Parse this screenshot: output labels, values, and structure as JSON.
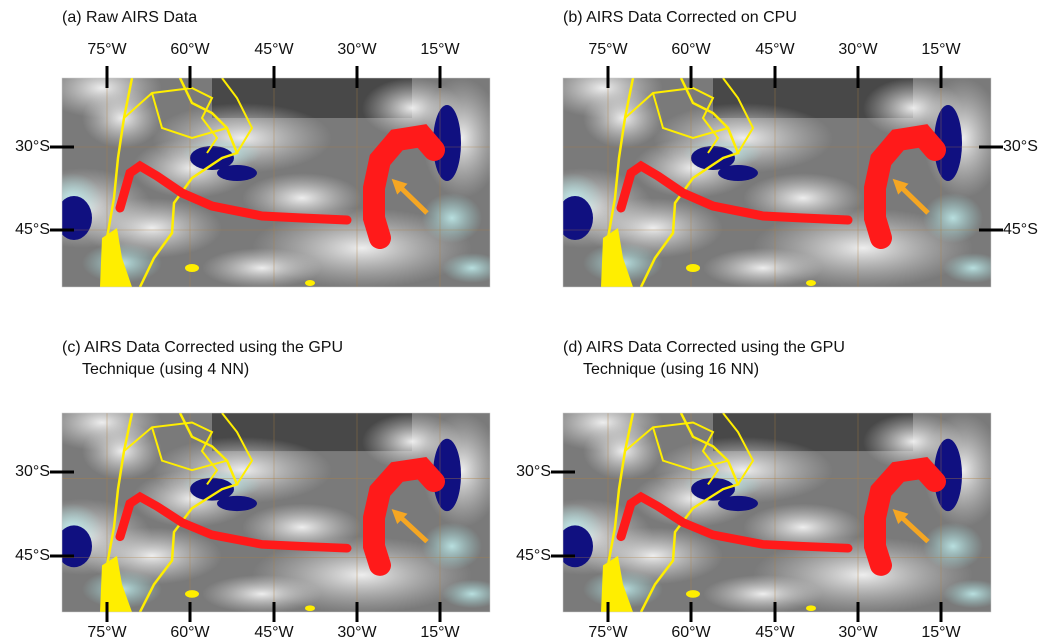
{
  "panels": [
    {
      "title": [
        "(a) Raw AIRS Data"
      ],
      "longitudes": [
        "75°W",
        "60°W",
        "45°W",
        "30°W",
        "15°W"
      ],
      "latitudes": [
        "30°S",
        "45°S"
      ]
    },
    {
      "title": [
        "(b) AIRS Data Corrected on CPU"
      ],
      "longitudes": [
        "75°W",
        "60°W",
        "45°W",
        "30°W",
        "15°W"
      ],
      "latitudes": [
        "30°S",
        "45°S"
      ]
    },
    {
      "title": [
        "(c) AIRS Data Corrected using the GPU",
        "Technique (using 4 NN)"
      ],
      "longitudes": [
        "75°W",
        "60°W",
        "45°W",
        "30°W",
        "15°W"
      ],
      "latitudes": [
        "30°S",
        "45°S"
      ]
    },
    {
      "title": [
        "(d) AIRS Data Corrected using the GPU",
        "Technique (using 16 NN)"
      ],
      "longitudes": [
        "75°W",
        "60°W",
        "45°W",
        "30°W",
        "15°W"
      ],
      "latitudes": [
        "30°S",
        "45°S"
      ]
    }
  ]
}
